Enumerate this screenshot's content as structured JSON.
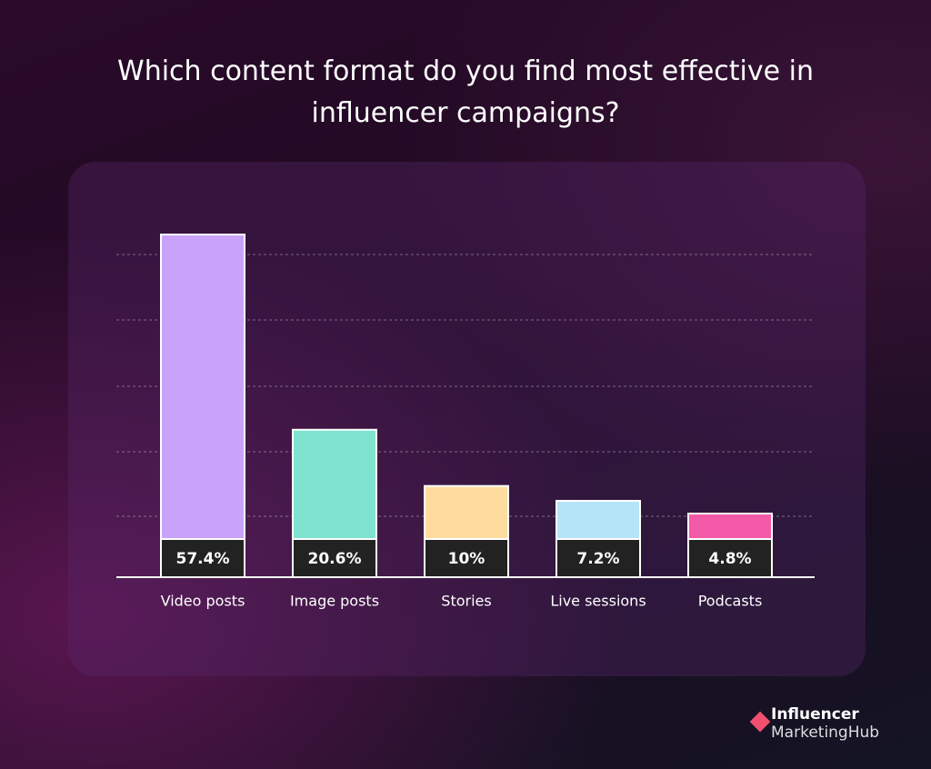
{
  "chart_data": {
    "type": "bar",
    "title": "Which content format do you find most effective in influencer campaigns?",
    "categories": [
      "Video posts",
      "Image posts",
      "Stories",
      "Live sessions",
      "Podcasts"
    ],
    "values": [
      57.4,
      20.6,
      10,
      7.2,
      4.8
    ],
    "value_labels": [
      "57.4%",
      "20.6%",
      "10%",
      "7.2%",
      "4.8%"
    ],
    "colors": [
      "#c9a2fa",
      "#7fe3cf",
      "#fedb9f",
      "#b5e4f8",
      "#f25aa8"
    ]
  },
  "brand": {
    "line1": "Influencer",
    "line2": "MarketingHub"
  }
}
